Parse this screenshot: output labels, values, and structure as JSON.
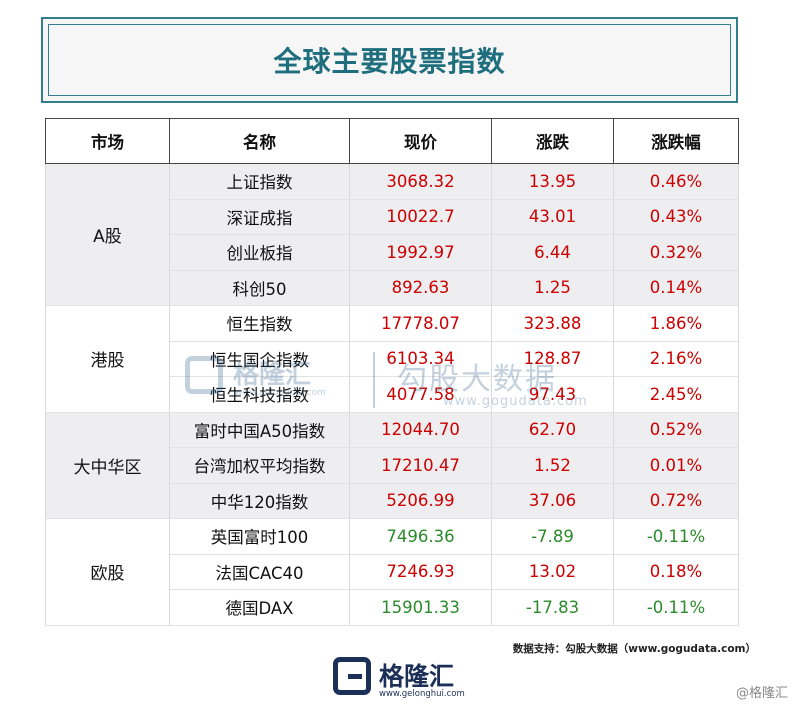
{
  "title": "全球主要股票指数",
  "table": {
    "headers": [
      "市场",
      "名称",
      "现价",
      "涨跌",
      "涨跌幅"
    ],
    "groups": [
      {
        "market": "A股",
        "rows": [
          {
            "name": "上证指数",
            "price": "3068.32",
            "change": "13.95",
            "pct": "0.46%"
          },
          {
            "name": "深证成指",
            "price": "10022.7",
            "change": "43.01",
            "pct": "0.43%"
          },
          {
            "name": "创业板指",
            "price": "1992.97",
            "change": "6.44",
            "pct": "0.32%"
          },
          {
            "name": "科创50",
            "price": "892.63",
            "change": "1.25",
            "pct": "0.14%"
          }
        ]
      },
      {
        "market": "港股",
        "rows": [
          {
            "name": "恒生指数",
            "price": "17778.07",
            "change": "323.88",
            "pct": "1.86%"
          },
          {
            "name": "恒生国企指数",
            "price": "6103.34",
            "change": "128.87",
            "pct": "2.16%"
          },
          {
            "name": "恒生科技指数",
            "price": "4077.58",
            "change": "97.43",
            "pct": "2.45%"
          }
        ]
      },
      {
        "market": "大中华区",
        "rows": [
          {
            "name": "富时中国A50指数",
            "price": "12044.70",
            "change": "62.70",
            "pct": "0.52%"
          },
          {
            "name": "台湾加权平均指数",
            "price": "17210.47",
            "change": "1.52",
            "pct": "0.01%"
          },
          {
            "name": "中华120指数",
            "price": "5206.99",
            "change": "37.06",
            "pct": "0.72%"
          }
        ]
      },
      {
        "market": "欧股",
        "rows": [
          {
            "name": "英国富时100",
            "price": "7496.36",
            "change": "-7.89",
            "pct": "-0.11%"
          },
          {
            "name": "法国CAC40",
            "price": "7246.93",
            "change": "13.02",
            "pct": "0.18%"
          },
          {
            "name": "德国DAX",
            "price": "15901.33",
            "change": "-17.83",
            "pct": "-0.11%"
          }
        ]
      }
    ]
  },
  "colors": {
    "up": "#cc0000",
    "down": "#2b8a2b",
    "accent": "#1f6e7d"
  },
  "source": "数据支持：勾股大数据（www.gogudata.com）",
  "watermark": {
    "brand": "格隆汇",
    "brand_url": "www.gelonghui.com",
    "brand2": "勾股大数据",
    "brand2_url": "www.gogudata.com"
  },
  "footer": {
    "brand": "格隆汇",
    "url": "www.gelonghui.com",
    "corner": "@格隆汇"
  }
}
